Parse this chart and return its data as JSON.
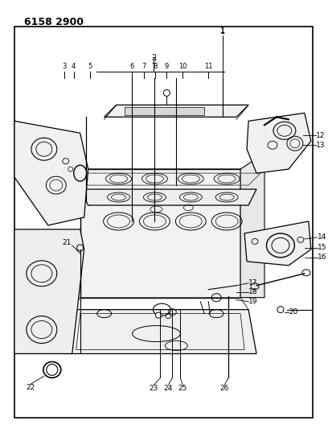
{
  "title_code": "6158 2900",
  "background_color": "#ffffff",
  "border_color": "#000000",
  "line_color": "#000000",
  "text_color": "#000000",
  "fig_width": 4.08,
  "fig_height": 5.33,
  "dpi": 100
}
